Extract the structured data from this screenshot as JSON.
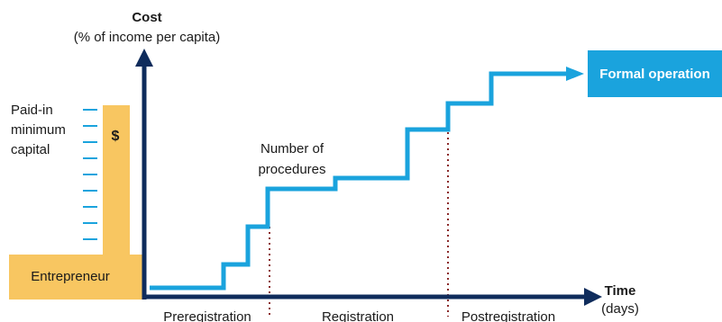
{
  "colors": {
    "axis": "#0f2c5c",
    "steps": "#1aa3dd",
    "entrepreneur": "#f8c661",
    "formal_box": "#1aa3dd",
    "dotted": "#8b2a2a",
    "ticks": "#1aa3dd",
    "text": "#1a1a1a"
  },
  "axes": {
    "cost_title": "Cost",
    "cost_subtitle": "(% of income per capita)",
    "time_title": "Time",
    "time_subtitle": "(days)"
  },
  "labels": {
    "paid_in_line1": "Paid-in",
    "paid_in_line2": "minimum",
    "paid_in_line3": "capital",
    "dollar": "$",
    "procedures_line1": "Number of",
    "procedures_line2": "procedures",
    "entrepreneur": "Entrepreneur",
    "formal_operation": "Formal operation"
  },
  "phases": [
    "Preregistration",
    "Registration",
    "Postregistration"
  ],
  "icons": {
    "arrows": "arrow-head-icon",
    "dollar": "dollar-sign-icon"
  }
}
